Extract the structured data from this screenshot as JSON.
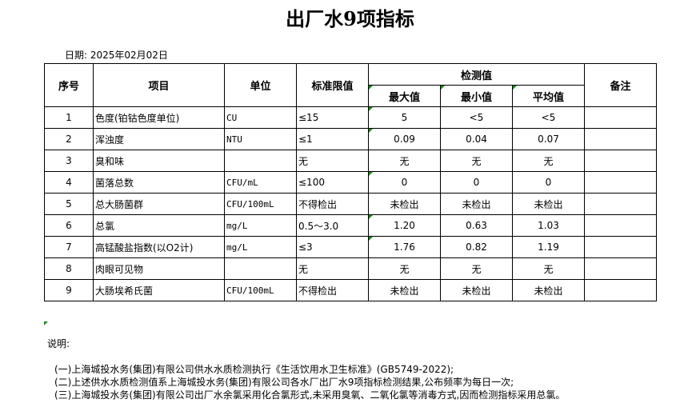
{
  "title": "出厂水9项指标",
  "date": "日期: 2025年02月02日",
  "headers": {
    "seq": "序号",
    "item": "项目",
    "unit": "单位",
    "limit": "标准限值",
    "measured": "检测值",
    "max": "最大值",
    "min": "最小值",
    "avg": "平均值",
    "remark": "备注"
  },
  "rows": [
    {
      "seq": "1",
      "item": "色度(铂钴色度单位)",
      "unit": "CU",
      "limit": "≤15",
      "max": "5",
      "min": "<5",
      "avg": "<5",
      "remark": ""
    },
    {
      "seq": "2",
      "item": "浑浊度",
      "unit": "NTU",
      "limit": "≤1",
      "max": "0.09",
      "min": "0.04",
      "avg": "0.07",
      "remark": ""
    },
    {
      "seq": "3",
      "item": "臭和味",
      "unit": "",
      "limit": "无",
      "max": "无",
      "min": "无",
      "avg": "无",
      "remark": ""
    },
    {
      "seq": "4",
      "item": "菌落总数",
      "unit": "CFU/mL",
      "limit": "≤100",
      "max": "0",
      "min": "0",
      "avg": "0",
      "remark": ""
    },
    {
      "seq": "5",
      "item": "总大肠菌群",
      "unit": "CFU/100mL",
      "limit": "不得检出",
      "max": "未检出",
      "min": "未检出",
      "avg": "未检出",
      "remark": ""
    },
    {
      "seq": "6",
      "item": "总氯",
      "unit": "mg/L",
      "limit": "0.5～3.0",
      "max": "1.20",
      "min": "0.63",
      "avg": "1.03",
      "remark": ""
    },
    {
      "seq": "7",
      "item": "高锰酸盐指数(以O2计)",
      "unit": "mg/L",
      "limit": "≤3",
      "max": "1.76",
      "min": "0.82",
      "avg": "1.19",
      "remark": ""
    },
    {
      "seq": "8",
      "item": "肉眼可见物",
      "unit": "",
      "limit": "无",
      "max": "无",
      "min": "无",
      "avg": "无",
      "remark": ""
    },
    {
      "seq": "9",
      "item": "大肠埃希氏菌",
      "unit": "CFU/100mL",
      "limit": "不得检出",
      "max": "未检出",
      "min": "未检出",
      "avg": "未检出",
      "remark": ""
    }
  ],
  "notes": {
    "label": "说明:",
    "items": [
      "(一)上海城投水务(集团)有限公司供水水质检测执行《生活饮用水卫生标准》(GB5749-2022);",
      "(二)上述供水水质检测值系上海城投水务(集团)有限公司各水厂出厂水9项指标检测结果,公布频率为每日一次;",
      "(三)上海城投水务(集团)有限公司出厂水余氯采用化合氯形式,未采用臭氧、二氧化氯等消毒方式,因而检测指标采用总氯。"
    ]
  },
  "colors": {
    "cell_marker": "#1a8a1a"
  }
}
